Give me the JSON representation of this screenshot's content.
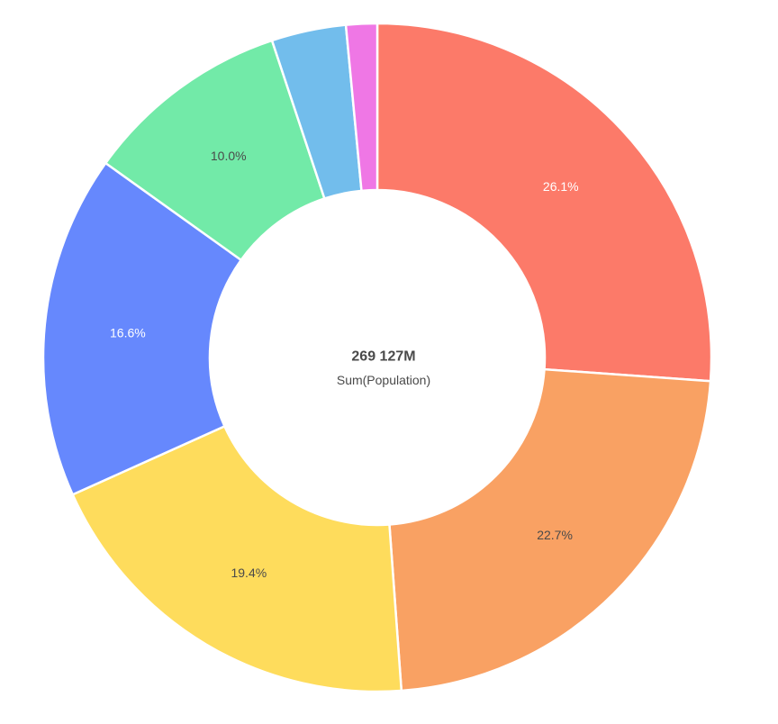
{
  "chart_data": {
    "type": "pie",
    "variant": "donut",
    "center_value": "269 127M",
    "center_caption": "Sum(Population)",
    "slices": [
      {
        "value": 26.1,
        "label": "26.1%",
        "color": "#fc7a69",
        "label_color": "#ffffff"
      },
      {
        "value": 22.7,
        "label": "22.7%",
        "color": "#f9a163",
        "label_color": "#4a4a4a"
      },
      {
        "value": 19.4,
        "label": "19.4%",
        "color": "#fedc5c",
        "label_color": "#4a4a4a"
      },
      {
        "value": 16.6,
        "label": "16.6%",
        "color": "#6688fd",
        "label_color": "#ffffff"
      },
      {
        "value": 10.0,
        "label": "10.0%",
        "color": "#72eaa8",
        "label_color": "#4a4a4a"
      },
      {
        "value": 3.6,
        "label": "",
        "color": "#72bdec",
        "label_color": "#4a4a4a"
      },
      {
        "value": 1.5,
        "label": "",
        "color": "#ef77e5",
        "label_color": "#4a4a4a"
      }
    ]
  }
}
